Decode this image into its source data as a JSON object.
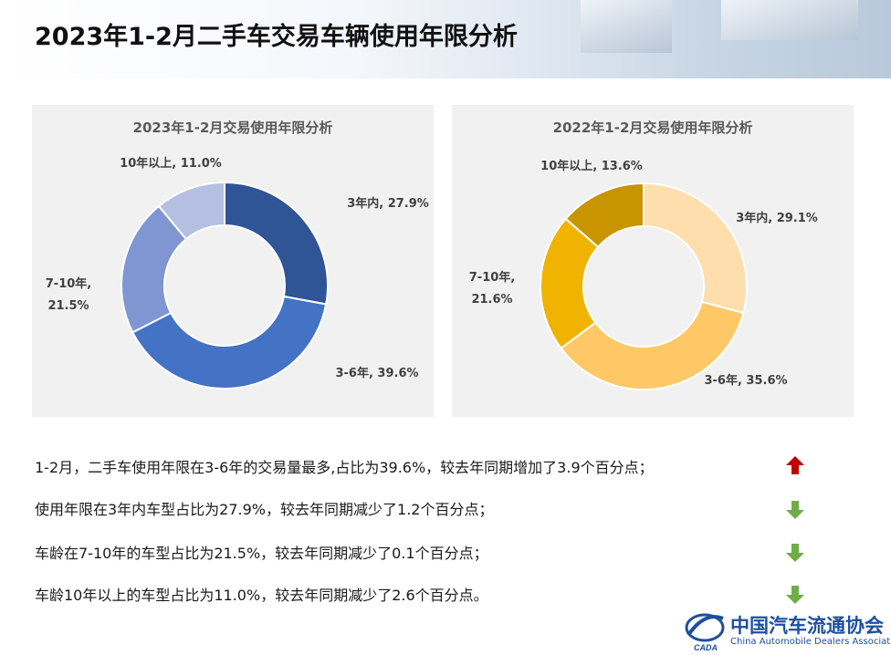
{
  "page": {
    "title": "2023年1-2月二手车交易车辆使用年限分析"
  },
  "chart_data": [
    {
      "type": "pie",
      "variant": "donut",
      "title": "2023年1-2月交易使用年限分析",
      "categories": [
        "3年内",
        "3-6年",
        "7-10年",
        "10年以上"
      ],
      "values": [
        27.9,
        39.6,
        21.5,
        11.0
      ],
      "unit": "%",
      "data_labels": [
        [
          "3年内, 27.9%"
        ],
        [
          "3-6年, 39.6%"
        ],
        [
          "7-10年,",
          "21.5%"
        ],
        [
          "10年以上, 11.0%"
        ]
      ],
      "colors": [
        "#2f5597",
        "#4472c4",
        "#7f96d3",
        "#b4bfe1"
      ]
    },
    {
      "type": "pie",
      "variant": "donut",
      "title": "2022年1-2月交易使用年限分析",
      "categories": [
        "3年内",
        "3-6年",
        "7-10年",
        "10年以上"
      ],
      "values": [
        29.1,
        35.6,
        21.6,
        13.6
      ],
      "unit": "%",
      "data_labels": [
        [
          "3年内, 29.1%"
        ],
        [
          "3-6年, 35.6%"
        ],
        [
          "7-10年,",
          "21.6%"
        ],
        [
          "10年以上, 13.6%"
        ]
      ],
      "colors": [
        "#ffdead",
        "#ffc866",
        "#f0b400",
        "#c89400"
      ]
    }
  ],
  "notes": [
    {
      "text": "1-2月，二手车使用年限在3-6年的交易量最多,占比为39.6%，较去年同期增加了3.9个百分点；",
      "trend": "up",
      "color": "#c00000"
    },
    {
      "text": "使用年限在3年内车型占比为27.9%，较去年同期减少了1.2个百分点；",
      "trend": "down",
      "color": "#70ad47"
    },
    {
      "text": "车龄在7-10年的车型占比为21.5%，较去年同期减少了0.1个百分点；",
      "trend": "down",
      "color": "#70ad47"
    },
    {
      "text": "车龄10年以上的车型占比为11.0%，较去年同期减少了2.6个百分点。",
      "trend": "down",
      "color": "#70ad47"
    }
  ],
  "logo": {
    "name_cn": "中国汽车流通协会",
    "name_en": "China Automobile Dealers Association",
    "abbr": "CADA",
    "icon": "cada-logo-icon"
  }
}
